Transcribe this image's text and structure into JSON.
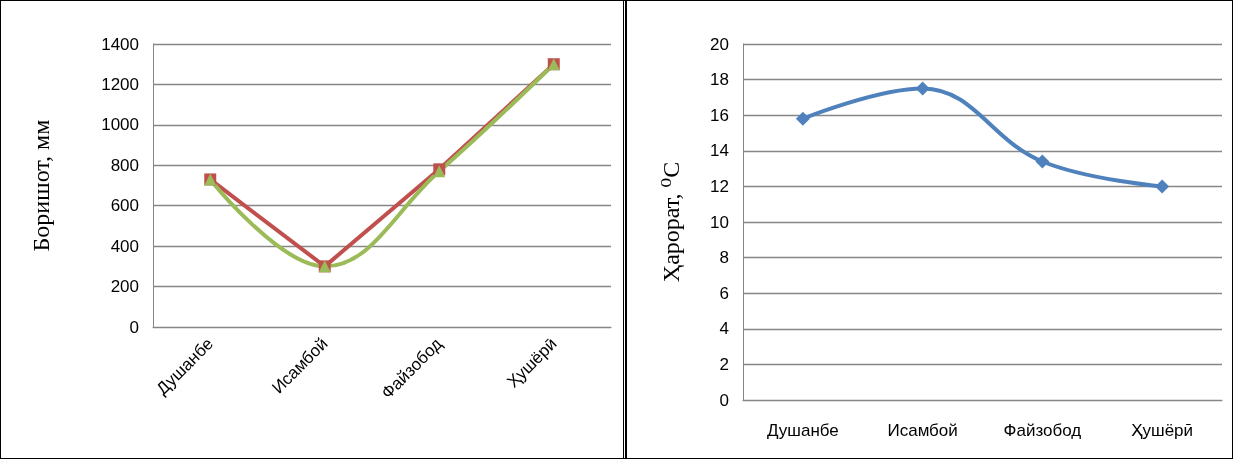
{
  "chart_data": [
    {
      "type": "line",
      "ylabel": "Боришот, мм",
      "categories": [
        "Душанбе",
        "Исамбой",
        "Файзобод",
        "Ҳушёрӣ"
      ],
      "series": [
        {
          "color": "#c0504d",
          "marker": "square",
          "values": [
            730,
            300,
            780,
            1300
          ]
        },
        {
          "color": "#9bbb59",
          "marker": "triangle",
          "values": [
            730,
            300,
            770,
            1300
          ]
        }
      ],
      "ylim": [
        0,
        1400
      ],
      "yticks": [
        0,
        200,
        400,
        600,
        800,
        1000,
        1200,
        1400
      ],
      "grid": "y"
    },
    {
      "type": "line",
      "ylabel": "Ҳарорат, ⁰C",
      "categories": [
        "Душанбе",
        "Исамбой",
        "Файзобод",
        "Ҳушёрӣ"
      ],
      "series": [
        {
          "color": "#4f81bd",
          "marker": "diamond",
          "values": [
            15.8,
            17.5,
            13.4,
            12.0
          ]
        }
      ],
      "ylim": [
        0,
        20
      ],
      "yticks": [
        0,
        2,
        4,
        6,
        8,
        10,
        12,
        14,
        16,
        18,
        20
      ],
      "grid": "y"
    }
  ]
}
